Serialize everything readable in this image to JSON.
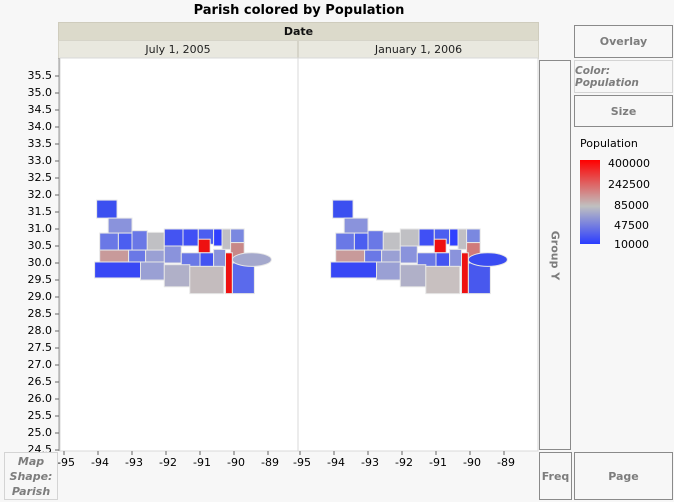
{
  "title": "Parish colored by Population",
  "group_x": {
    "label": "Date",
    "levels": [
      "July 1, 2005",
      "January 1, 2006"
    ]
  },
  "zones": {
    "overlay": "Overlay",
    "color": "Color: Population",
    "size": "Size",
    "group_y": "Group Y",
    "freq": "Freq",
    "page": "Page",
    "map_shape": [
      "Map",
      "Shape:",
      "Parish"
    ]
  },
  "legend": {
    "title": "Population",
    "labels": [
      "400000",
      "242500",
      "85000",
      "47500",
      "10000"
    ],
    "colors": [
      "#ff0000",
      "#c0c0c0",
      "#2a3cff"
    ]
  },
  "chart_data": {
    "type": "map",
    "y_ticks": [
      "35.5",
      "35.0",
      "34.5",
      "34.0",
      "33.5",
      "33.0",
      "32.5",
      "32.0",
      "31.5",
      "31.0",
      "30.5",
      "30.0",
      "29.5",
      "29.0",
      "28.5",
      "28.0",
      "27.5",
      "27.0",
      "26.5",
      "26.0",
      "25.5",
      "25.0",
      "24.5"
    ],
    "x_ticks": [
      "-95",
      "-94",
      "-93",
      "-92",
      "-91",
      "-90",
      "-89"
    ],
    "xlim": [
      -95,
      -88.3
    ],
    "ylim": [
      24.5,
      35.5
    ],
    "color_scale": {
      "min": 10000,
      "max": 400000
    }
  }
}
